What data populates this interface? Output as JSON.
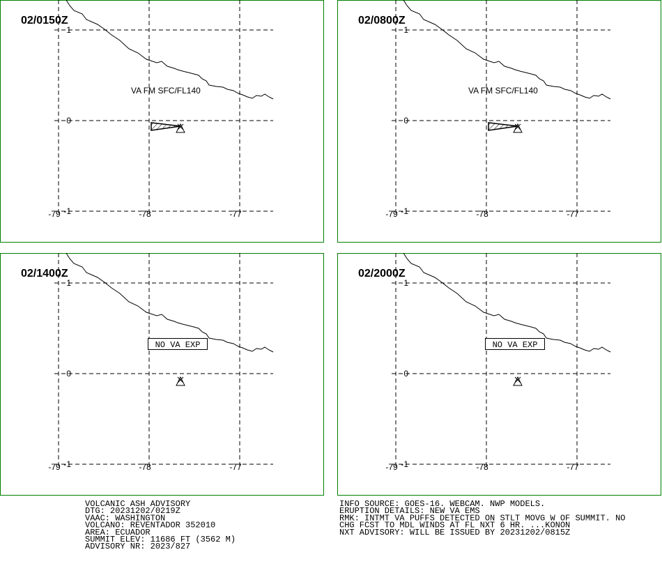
{
  "panels": [
    {
      "time": "02/0150Z",
      "annotation": "VA FM SFC/FL140",
      "lat_labels": [
        "1",
        "0",
        "-1"
      ],
      "lon_labels": [
        "-79",
        "-78",
        "-77"
      ]
    },
    {
      "time": "02/0800Z",
      "annotation": "VA FM SFC/FL140",
      "lat_labels": [
        "1",
        "0",
        "-1"
      ],
      "lon_labels": [
        "-79",
        "-78",
        "-77"
      ]
    },
    {
      "time": "02/1400Z",
      "boxed_annotation": "NO VA EXP",
      "lat_labels": [
        "1",
        "0",
        "-1"
      ],
      "lon_labels": [
        "-79",
        "-78",
        "-77"
      ]
    },
    {
      "time": "02/2000Z",
      "boxed_annotation": "NO VA EXP",
      "lat_labels": [
        "1",
        "0",
        "-1"
      ],
      "lon_labels": [
        "-79",
        "-78",
        "-77"
      ]
    }
  ],
  "advisory_left": [
    "VOLCANIC ASH ADVISORY",
    "DTG: 20231202/0219Z",
    "VAAC: WASHINGTON",
    "VOLCANO: REVENTADOR 352010",
    "AREA: ECUADOR",
    "SUMMIT ELEV: 11686 FT (3562 M)",
    "ADVISORY NR: 2023/827"
  ],
  "advisory_right": [
    "INFO SOURCE: GOES-16. WEBCAM. NWP MODELS.",
    "ERUPTION DETAILS: NEW VA EMS",
    "RMK: INTMT VA PUFFS DETECTED ON STLT MOVG W OF SUMMIT. NO",
    "CHG FCST TO MDL WINDS AT FL NXT 6 HR. ...KONON",
    "NXT ADVISORY: WILL BE ISSUED BY 20231202/0815Z"
  ]
}
